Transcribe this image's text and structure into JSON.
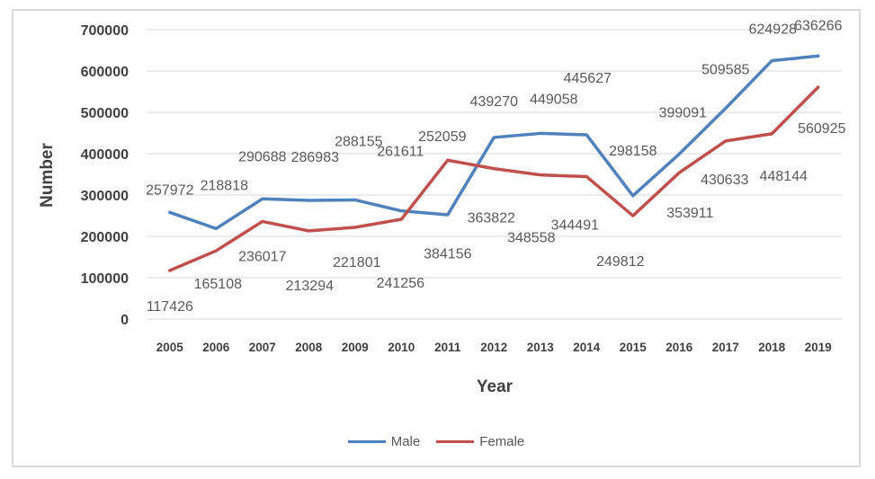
{
  "chart_data": {
    "type": "line",
    "title": "",
    "xlabel": "Year",
    "ylabel": "Number",
    "categories": [
      "2005",
      "2006",
      "2007",
      "2008",
      "2009",
      "2010",
      "2011",
      "2012",
      "2013",
      "2014",
      "2015",
      "2016",
      "2017",
      "2018",
      "2019"
    ],
    "series": [
      {
        "name": "Male",
        "color": "#4F81BD",
        "values": [
          257972,
          218818,
          290688,
          286983,
          288155,
          261611,
          252059,
          439270,
          449058,
          445627,
          298158,
          399091,
          509585,
          624928,
          636266
        ]
      },
      {
        "name": "Female",
        "color": "#C0504D",
        "values": [
          117426,
          165108,
          236017,
          213294,
          221801,
          241256,
          384156,
          363822,
          348558,
          344491,
          249812,
          353911,
          430633,
          448144,
          560925
        ]
      }
    ],
    "ylim": [
      0,
      700000
    ],
    "ytick_step": 100000,
    "yticks": [
      "0",
      "100000",
      "200000",
      "300000",
      "400000",
      "500000",
      "600000",
      "700000"
    ],
    "grid": true,
    "data_labels": true,
    "legend_position": "bottom",
    "colors": {
      "grid": "#d9d9d9",
      "frame_border": "#d9d9d9",
      "tick_label": "#404040",
      "data_label": "#595959",
      "axis_title": "#404040",
      "legend_text": "#595959"
    }
  }
}
